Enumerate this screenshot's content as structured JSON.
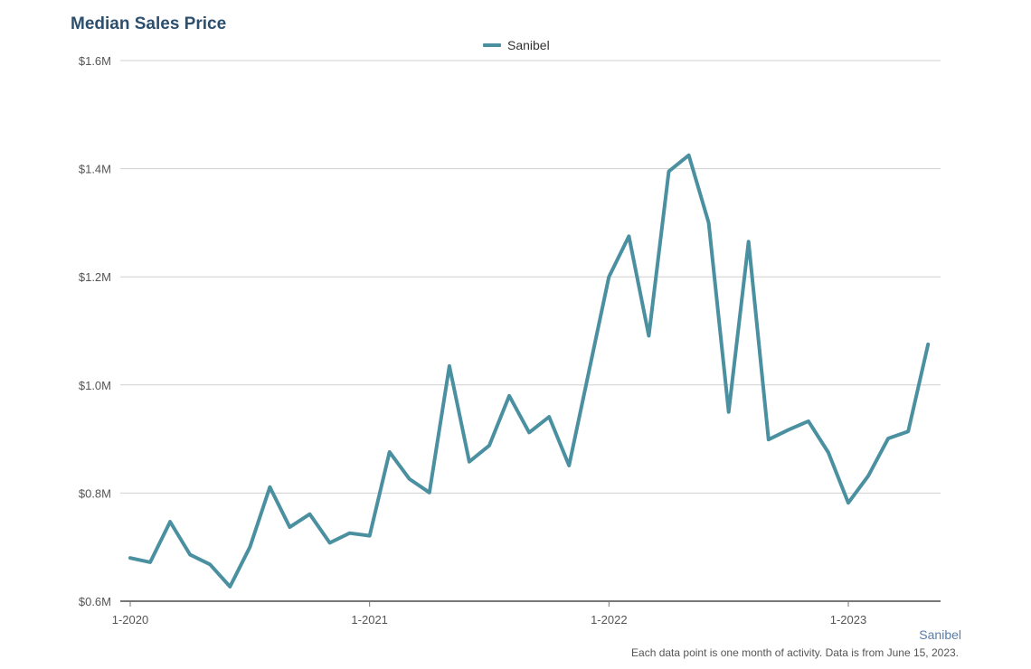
{
  "page": {
    "title": "Median Sales Price",
    "footer_region": "Sanibel",
    "footer_note": "Each data point is one month of activity. Data is from June 15, 2023."
  },
  "chart_data": {
    "type": "line",
    "title": "Median Sales Price",
    "xlabel": "",
    "ylabel": "",
    "legend_position": "top-center",
    "grid": true,
    "ylim": [
      600000,
      1600000
    ],
    "y_ticks": [
      600000,
      800000,
      1000000,
      1200000,
      1400000,
      1600000
    ],
    "y_tick_labels": [
      "$0.6M",
      "$0.8M",
      "$1.0M",
      "$1.2M",
      "$1.4M",
      "$1.6M"
    ],
    "x_ticks": [
      "2020-01",
      "2021-01",
      "2022-01",
      "2023-01"
    ],
    "x_tick_labels": [
      "1-2020",
      "1-2021",
      "1-2022",
      "1-2023"
    ],
    "x": [
      "2020-01",
      "2020-02",
      "2020-03",
      "2020-04",
      "2020-05",
      "2020-06",
      "2020-07",
      "2020-08",
      "2020-09",
      "2020-10",
      "2020-11",
      "2020-12",
      "2021-01",
      "2021-02",
      "2021-03",
      "2021-04",
      "2021-05",
      "2021-06",
      "2021-07",
      "2021-08",
      "2021-09",
      "2021-10",
      "2021-11",
      "2021-12",
      "2022-01",
      "2022-02",
      "2022-03",
      "2022-04",
      "2022-05",
      "2022-06",
      "2022-07",
      "2022-08",
      "2022-09",
      "2022-10",
      "2022-11",
      "2022-12",
      "2023-01",
      "2023-02",
      "2023-03",
      "2023-04",
      "2023-05"
    ],
    "series": [
      {
        "name": "Sanibel",
        "color": "#4a90a0",
        "values": [
          680000,
          672000,
          747000,
          686000,
          668000,
          627000,
          700000,
          811000,
          737000,
          761000,
          708000,
          726000,
          721000,
          876000,
          826000,
          801000,
          1035000,
          858000,
          888000,
          980000,
          912000,
          941000,
          851000,
          1026000,
          1200000,
          1275000,
          1091000,
          1395000,
          1425000,
          1300000,
          950000,
          1265000,
          899000,
          917000,
          933000,
          875000,
          782000,
          832000,
          901000,
          914000,
          1075000
        ]
      }
    ]
  }
}
